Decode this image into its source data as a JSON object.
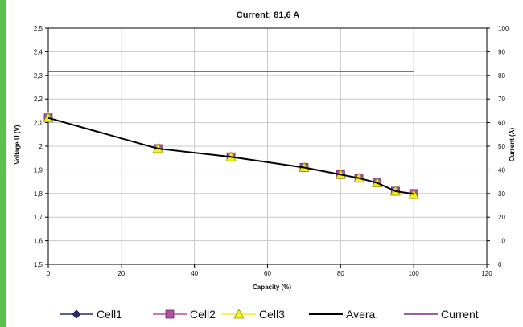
{
  "chart_data": {
    "type": "line",
    "title": "Current: 81,6 A",
    "xlabel": "Capacity (%)",
    "ylabel": "Voltage U (V)",
    "y2label": "Current (A)",
    "xlim": [
      0,
      120
    ],
    "ylim": [
      1.5,
      2.5
    ],
    "y2lim": [
      0,
      100
    ],
    "x_ticks": [
      "0",
      "20",
      "40",
      "60",
      "80",
      "100",
      "120"
    ],
    "y_ticks": [
      "1,5",
      "1,6",
      "1,7",
      "1,8",
      "1,9",
      "2",
      "2,1",
      "2,2",
      "2,3",
      "2,4",
      "2,5"
    ],
    "y2_ticks": [
      "0",
      "10",
      "20",
      "30",
      "40",
      "50",
      "60",
      "70",
      "80",
      "90",
      "100"
    ],
    "grid": true,
    "legend_position": "bottom",
    "x": [
      0,
      30,
      50,
      70,
      80,
      85,
      90,
      95,
      100
    ],
    "series": [
      {
        "name": "Cell1",
        "axis": "left",
        "marker": "diamond",
        "color": "#2a2a6e",
        "values": [
          2.12,
          1.99,
          1.955,
          1.91,
          1.88,
          1.865,
          1.845,
          1.81,
          1.8
        ]
      },
      {
        "name": "Cell2",
        "axis": "left",
        "marker": "square",
        "color": "#b050a0",
        "values": [
          2.12,
          1.99,
          1.955,
          1.91,
          1.88,
          1.865,
          1.845,
          1.81,
          1.8
        ]
      },
      {
        "name": "Cell3",
        "axis": "left",
        "marker": "triangle",
        "color": "#f0f020",
        "values": [
          2.12,
          1.99,
          1.955,
          1.91,
          1.88,
          1.865,
          1.845,
          1.81,
          1.795
        ]
      },
      {
        "name": "Avera.",
        "axis": "left",
        "marker": "none",
        "color": "#000000",
        "values": [
          2.12,
          1.99,
          1.955,
          1.91,
          1.88,
          1.865,
          1.845,
          1.81,
          1.798
        ]
      },
      {
        "name": "Current",
        "axis": "right",
        "marker": "none",
        "color": "#7a2a82",
        "x": [
          0,
          100
        ],
        "values": [
          81.6,
          81.6
        ]
      }
    ]
  }
}
